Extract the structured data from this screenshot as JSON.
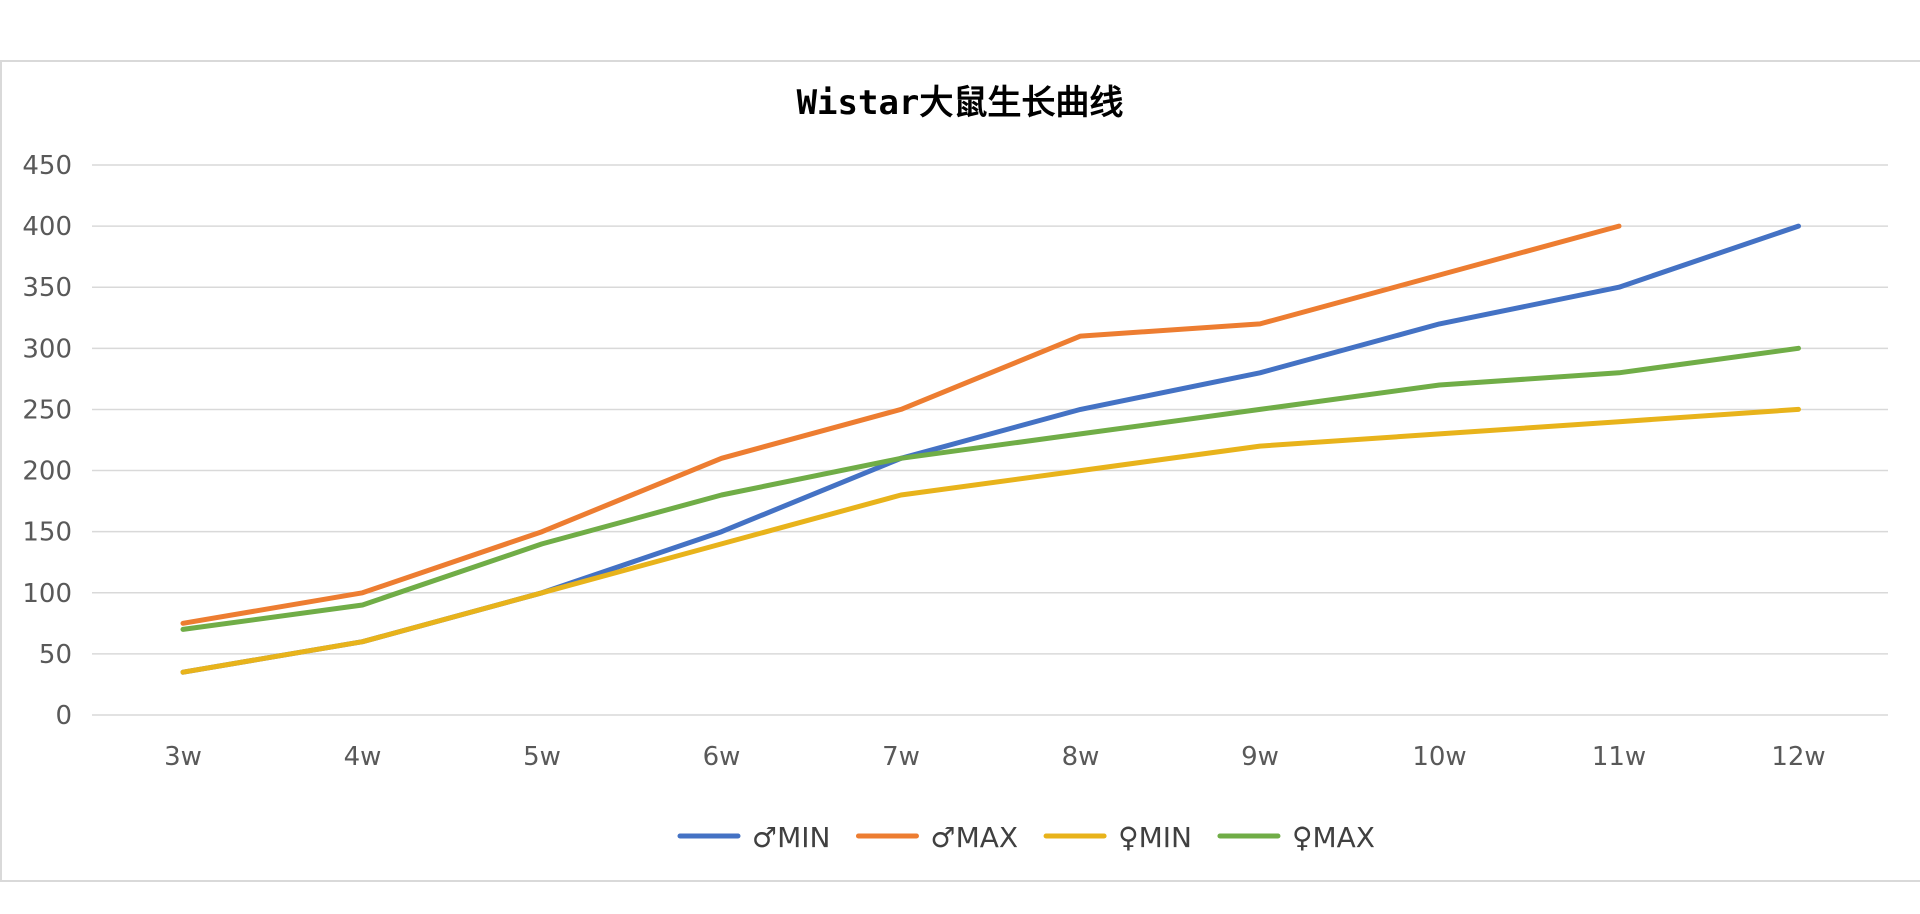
{
  "chart_data": {
    "type": "line",
    "title": "Wistar大鼠生长曲线",
    "xlabel": "",
    "ylabel": "",
    "categories": [
      "3w",
      "4w",
      "5w",
      "6w",
      "7w",
      "8w",
      "9w",
      "10w",
      "11w",
      "12w"
    ],
    "ylim": [
      0,
      450
    ],
    "yticks": [
      0,
      50,
      100,
      150,
      200,
      250,
      300,
      350,
      400,
      450
    ],
    "grid": true,
    "legend_position": "bottom",
    "series": [
      {
        "name": "♂MIN",
        "color": "#4472C4",
        "values": [
          35,
          60,
          100,
          150,
          210,
          250,
          280,
          320,
          350,
          400
        ]
      },
      {
        "name": "♂MAX",
        "color": "#ED7D31",
        "values": [
          75,
          100,
          150,
          210,
          250,
          310,
          320,
          360,
          400,
          null
        ]
      },
      {
        "name": "♀MIN",
        "color": "#E8B31B",
        "values": [
          35,
          60,
          100,
          140,
          180,
          200,
          220,
          230,
          240,
          250
        ]
      },
      {
        "name": "♀MAX",
        "color": "#70AD47",
        "values": [
          70,
          90,
          140,
          180,
          210,
          230,
          250,
          270,
          280,
          300
        ]
      }
    ]
  }
}
